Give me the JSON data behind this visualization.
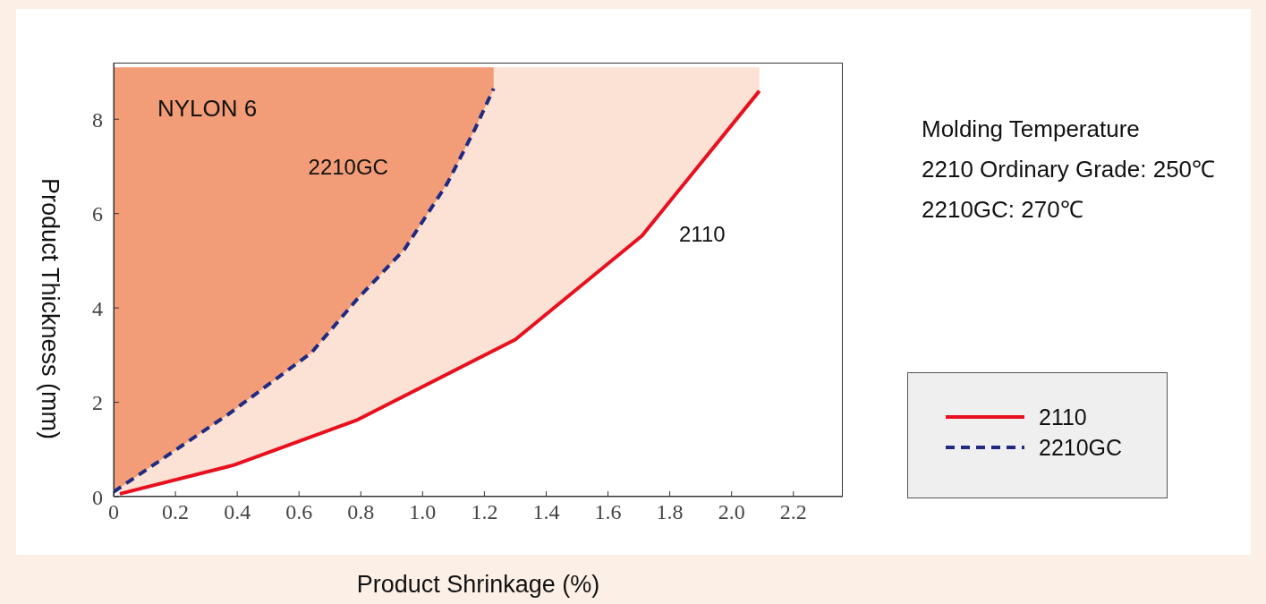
{
  "chart_data": {
    "type": "line",
    "xlabel": "Product Shrinkage (%)",
    "ylabel": "Product Thickness (mm)",
    "xlim": [
      0,
      2.36
    ],
    "ylim": [
      0,
      9.2
    ],
    "xticks": [
      0,
      0.2,
      0.4,
      0.6,
      0.8,
      {
        "value": 1,
        "label": "1.0"
      },
      1.2,
      1.4,
      1.6,
      1.8,
      {
        "value": 2,
        "label": "2.0"
      },
      2.2
    ],
    "yticks": [
      0,
      2,
      4,
      6,
      8
    ],
    "series": [
      {
        "name": "2110",
        "color": "#e8101e",
        "line_style": "solid",
        "x": [
          0.02,
          0.39,
          0.79,
          1.3,
          1.71,
          2.09
        ],
        "values": [
          0.06,
          0.67,
          1.63,
          3.33,
          5.53,
          8.6
        ],
        "lower": [
          0.06,
          0.67,
          1.63,
          3.33,
          5.53,
          8.6
        ],
        "upper": [
          9.1,
          9.1,
          9.1,
          9.1,
          9.1,
          9.1
        ]
      },
      {
        "name": "2210GC",
        "color": "#1f2a80",
        "line_style": "dashed",
        "x": [
          0,
          0.37,
          0.64,
          0.79,
          0.94,
          1.08,
          1.17,
          1.23
        ],
        "values": [
          0.1,
          1.74,
          3.05,
          4.2,
          5.23,
          6.64,
          7.8,
          8.65
        ],
        "lower": [
          0.1,
          1.74,
          3.05,
          4.2,
          5.23,
          6.64,
          7.8,
          8.65
        ],
        "upper": [
          9.1,
          9.1,
          9.1,
          9.1,
          9.1,
          9.1,
          9.1,
          9.1
        ]
      }
    ],
    "annotations": [
      "NYLON 6",
      "Molding Temperature",
      "2210 Ordinary Grade: 250℃",
      "2210GC: 270℃"
    ],
    "legend": "right",
    "marker": "none",
    "grid": false
  }
}
